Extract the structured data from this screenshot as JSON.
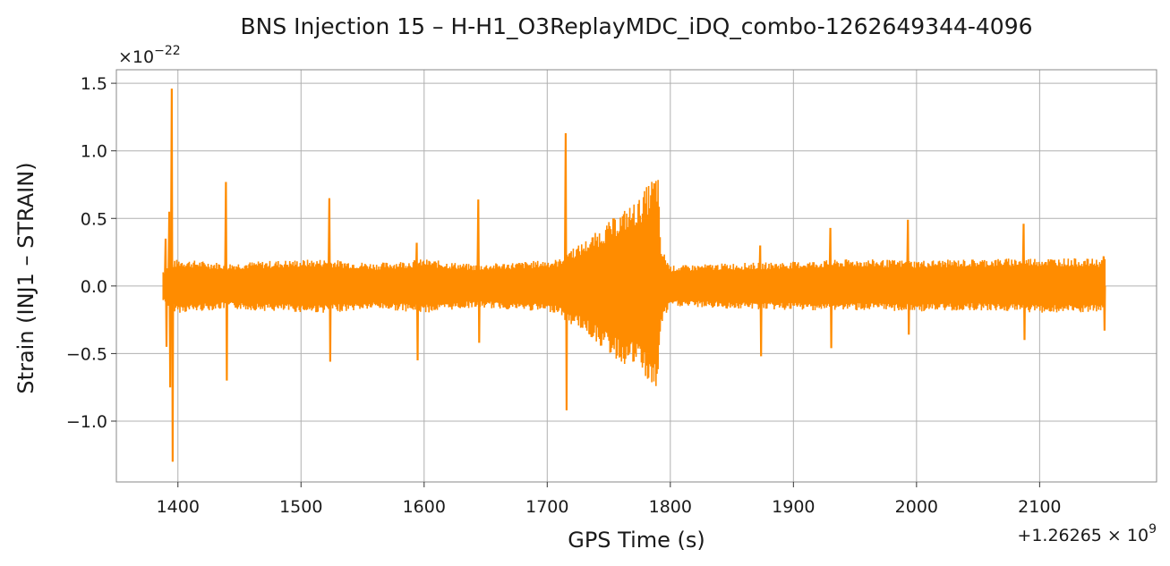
{
  "chart_data": {
    "type": "line",
    "title": "BNS Injection 15 – H-H1_O3ReplayMDC_iDQ_combo-1262649344-4096",
    "xlabel": "GPS Time (s)",
    "ylabel": "Strain (INJ1 – STRAIN)",
    "x_offset_label": "+1.26265 × 10",
    "x_offset_exp": "9",
    "y_scale_label": "×10",
    "y_scale_exp": "−22",
    "xlim": [
      1350,
      2195
    ],
    "ylim": [
      -1.45,
      1.6
    ],
    "x_ticks": [
      1400,
      1500,
      1600,
      1700,
      1800,
      1900,
      2000,
      2100
    ],
    "x_tick_labels": [
      "1400",
      "1500",
      "1600",
      "1700",
      "1800",
      "1900",
      "2000",
      "2100"
    ],
    "y_ticks": [
      -1.0,
      -0.5,
      0.0,
      0.5,
      1.0,
      1.5
    ],
    "y_tick_labels": [
      "−1.0",
      "−0.5",
      "0.0",
      "0.5",
      "1.0",
      "1.5"
    ],
    "grid": true,
    "line_color": "#ff8c00",
    "series": [
      {
        "envelope": {
          "x": [
            1388,
            1395,
            1400,
            1440,
            1480,
            1520,
            1560,
            1600,
            1640,
            1680,
            1710,
            1716,
            1725,
            1740,
            1760,
            1775,
            1785,
            1790,
            1792,
            1800,
            1850,
            1900,
            1950,
            2000,
            2050,
            2100,
            2153
          ],
          "upper": [
            0.12,
            0.18,
            0.2,
            0.17,
            0.19,
            0.2,
            0.17,
            0.2,
            0.16,
            0.18,
            0.2,
            0.28,
            0.3,
            0.4,
            0.55,
            0.65,
            0.8,
            0.85,
            0.3,
            0.15,
            0.17,
            0.18,
            0.2,
            0.19,
            0.2,
            0.21,
            0.2
          ],
          "lower": [
            -0.12,
            -0.18,
            -0.2,
            -0.17,
            -0.19,
            -0.2,
            -0.17,
            -0.2,
            -0.16,
            -0.18,
            -0.2,
            -0.28,
            -0.3,
            -0.42,
            -0.58,
            -0.6,
            -0.78,
            -0.8,
            -0.3,
            -0.15,
            -0.17,
            -0.18,
            -0.18,
            -0.19,
            -0.18,
            -0.2,
            -0.2
          ]
        },
        "spikes": [
          {
            "x": 1390,
            "max": 0.35,
            "min": -0.45
          },
          {
            "x": 1393,
            "max": 0.55,
            "min": -0.75
          },
          {
            "x": 1395,
            "max": 1.46,
            "min": -1.3
          },
          {
            "x": 1439,
            "max": 0.77,
            "min": -0.7
          },
          {
            "x": 1523,
            "max": 0.65,
            "min": -0.56
          },
          {
            "x": 1594,
            "max": 0.32,
            "min": -0.55
          },
          {
            "x": 1644,
            "max": 0.64,
            "min": -0.42
          },
          {
            "x": 1715,
            "max": 1.13,
            "min": -0.92
          },
          {
            "x": 1873,
            "max": 0.3,
            "min": -0.52
          },
          {
            "x": 1930,
            "max": 0.43,
            "min": -0.46
          },
          {
            "x": 1993,
            "max": 0.49,
            "min": -0.36
          },
          {
            "x": 2087,
            "max": 0.46,
            "min": -0.4
          },
          {
            "x": 2152,
            "max": 0.22,
            "min": -0.33
          }
        ]
      }
    ]
  }
}
